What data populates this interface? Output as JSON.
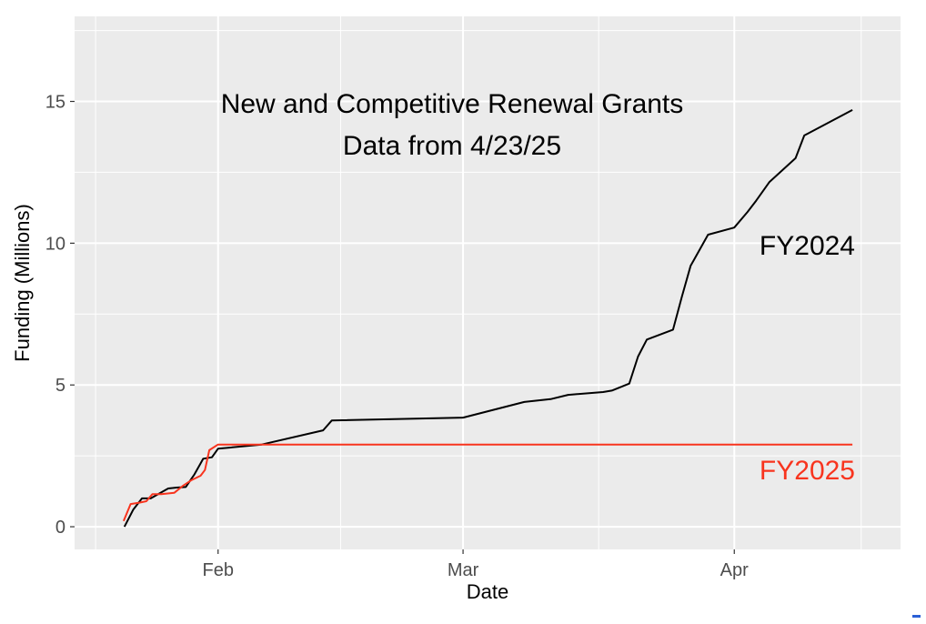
{
  "chart_data": {
    "type": "line",
    "title": "New and Competitive Renewal Grants",
    "subtitle": "Data from 4/23/25",
    "xlabel": "Date",
    "ylabel": "Funding (Millions)",
    "x_unit": "days since Jan 1",
    "xlim": [
      15.6,
      110.0
    ],
    "ylim": [
      -0.8,
      18.0
    ],
    "x_ticks": [
      {
        "label": "Feb",
        "value": 32
      },
      {
        "label": "Mar",
        "value": 60
      },
      {
        "label": "Apr",
        "value": 91
      }
    ],
    "x_minor": [
      18,
      46,
      75.5,
      105.5
    ],
    "y_ticks": [
      {
        "label": "0",
        "value": 0
      },
      {
        "label": "5",
        "value": 5
      },
      {
        "label": "10",
        "value": 10
      },
      {
        "label": "15",
        "value": 15
      }
    ],
    "y_minor": [
      2.5,
      7.5,
      12.5,
      17.5
    ],
    "grid": true,
    "legend": "none",
    "series": [
      {
        "name": "FY2024",
        "color": "#000000",
        "label": "FY2024",
        "points": [
          [
            21.3,
            0.0
          ],
          [
            22.3,
            0.6
          ],
          [
            23.3,
            1.0
          ],
          [
            24.3,
            1.0
          ],
          [
            26.3,
            1.35
          ],
          [
            27.3,
            1.38
          ],
          [
            28.3,
            1.4
          ],
          [
            29.3,
            1.85
          ],
          [
            30.3,
            2.4
          ],
          [
            31.3,
            2.45
          ],
          [
            32.0,
            2.75
          ],
          [
            37.0,
            2.9
          ],
          [
            44.0,
            3.4
          ],
          [
            45.0,
            3.75
          ],
          [
            60.0,
            3.85
          ],
          [
            67.0,
            4.4
          ],
          [
            70.0,
            4.5
          ],
          [
            72.0,
            4.65
          ],
          [
            76.0,
            4.75
          ],
          [
            77.0,
            4.8
          ],
          [
            79.0,
            5.05
          ],
          [
            80.0,
            6.0
          ],
          [
            81.0,
            6.6
          ],
          [
            84.0,
            6.95
          ],
          [
            85.0,
            8.1
          ],
          [
            86.0,
            9.2
          ],
          [
            88.0,
            10.3
          ],
          [
            91.0,
            10.55
          ],
          [
            92.5,
            11.1
          ],
          [
            93.5,
            11.5
          ],
          [
            95.0,
            12.15
          ],
          [
            98.0,
            13.0
          ],
          [
            99.0,
            13.8
          ],
          [
            104.5,
            14.7
          ]
        ]
      },
      {
        "name": "FY2025",
        "color": "#f8341e",
        "label": "FY2025",
        "points": [
          [
            21.2,
            0.2
          ],
          [
            22.0,
            0.8
          ],
          [
            23.0,
            0.85
          ],
          [
            23.8,
            0.9
          ],
          [
            24.5,
            1.15
          ],
          [
            25.5,
            1.15
          ],
          [
            27.0,
            1.2
          ],
          [
            28.0,
            1.45
          ],
          [
            29.0,
            1.65
          ],
          [
            30.0,
            1.8
          ],
          [
            30.5,
            2.0
          ],
          [
            31.0,
            2.7
          ],
          [
            32.0,
            2.9
          ],
          [
            104.5,
            2.9
          ]
        ]
      }
    ]
  }
}
